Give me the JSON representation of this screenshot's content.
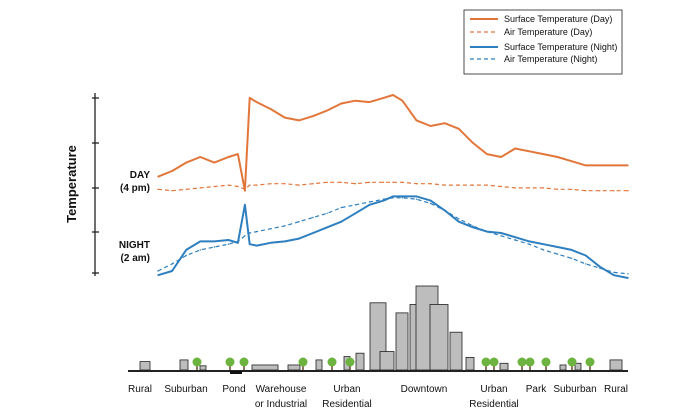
{
  "chart_data": {
    "type": "line",
    "title": "",
    "ylabel": "Temperature",
    "xlabel": "",
    "y_tick_labels": [
      {
        "line1": "DAY",
        "line2": "(4 pm)"
      },
      {
        "line1": "NIGHT",
        "line2": "(2 am)"
      }
    ],
    "x_zones": [
      "Rural",
      "Suburban",
      "Pond",
      "Warehouse or Industrial",
      "Urban Residential",
      "Downtown",
      "Urban Residential",
      "Park",
      "Suburban",
      "Rural"
    ],
    "x": [
      0,
      0.03,
      0.06,
      0.09,
      0.12,
      0.15,
      0.17,
      0.185,
      0.195,
      0.21,
      0.24,
      0.27,
      0.3,
      0.33,
      0.36,
      0.39,
      0.42,
      0.45,
      0.48,
      0.5,
      0.52,
      0.55,
      0.58,
      0.61,
      0.64,
      0.67,
      0.7,
      0.73,
      0.76,
      0.79,
      0.82,
      0.85,
      0.88,
      0.91,
      0.94,
      0.97,
      1
    ],
    "series": [
      {
        "name": "Surface Temperature (Day)",
        "style": "solid",
        "color": "#e2763a",
        "values": [
          0.72,
          0.76,
          0.82,
          0.86,
          0.82,
          0.86,
          0.88,
          0.62,
          1.28,
          1.25,
          1.2,
          1.14,
          1.12,
          1.15,
          1.19,
          1.24,
          1.26,
          1.25,
          1.28,
          1.3,
          1.26,
          1.12,
          1.08,
          1.1,
          1.06,
          0.96,
          0.88,
          0.86,
          0.92,
          0.9,
          0.88,
          0.86,
          0.83,
          0.8,
          0.8,
          0.8,
          0.8
        ]
      },
      {
        "name": "Air Temperature  (Day)",
        "style": "dashed",
        "color": "#e2763a",
        "values": [
          0.63,
          0.62,
          0.63,
          0.64,
          0.65,
          0.66,
          0.65,
          0.63,
          0.66,
          0.66,
          0.67,
          0.67,
          0.66,
          0.67,
          0.68,
          0.68,
          0.67,
          0.68,
          0.68,
          0.68,
          0.68,
          0.67,
          0.67,
          0.66,
          0.66,
          0.66,
          0.66,
          0.65,
          0.64,
          0.64,
          0.64,
          0.63,
          0.63,
          0.62,
          0.62,
          0.62,
          0.62
        ]
      },
      {
        "name": "Surface Temperature (Night)",
        "style": "solid",
        "color": "#2e7fbf",
        "values": [
          0.02,
          0.05,
          0.2,
          0.26,
          0.26,
          0.27,
          0.25,
          0.52,
          0.24,
          0.23,
          0.25,
          0.26,
          0.28,
          0.32,
          0.36,
          0.4,
          0.46,
          0.52,
          0.55,
          0.58,
          0.58,
          0.58,
          0.55,
          0.48,
          0.4,
          0.36,
          0.33,
          0.32,
          0.29,
          0.26,
          0.24,
          0.22,
          0.2,
          0.16,
          0.08,
          0.02,
          0.0
        ]
      },
      {
        "name": "Air Temperature (Night)",
        "style": "dashed",
        "color": "#2e7fbf",
        "values": [
          0.05,
          0.1,
          0.16,
          0.2,
          0.22,
          0.24,
          0.26,
          0.3,
          0.32,
          0.33,
          0.35,
          0.37,
          0.4,
          0.43,
          0.46,
          0.5,
          0.52,
          0.54,
          0.56,
          0.57,
          0.57,
          0.56,
          0.53,
          0.48,
          0.42,
          0.37,
          0.33,
          0.3,
          0.27,
          0.24,
          0.2,
          0.17,
          0.14,
          0.1,
          0.07,
          0.04,
          0.03
        ]
      }
    ],
    "ylim": [
      0,
      1.35
    ],
    "grid": false,
    "legend": "top-right",
    "building_heights": [
      0.1,
      0.12,
      0.05,
      0.06,
      0.06,
      0.12,
      0.16,
      0.2,
      0.8,
      0.22,
      0.68,
      0.78,
      1.0,
      0.78,
      0.45,
      0.15,
      0.08,
      0.06,
      0.08,
      0.12
    ]
  }
}
